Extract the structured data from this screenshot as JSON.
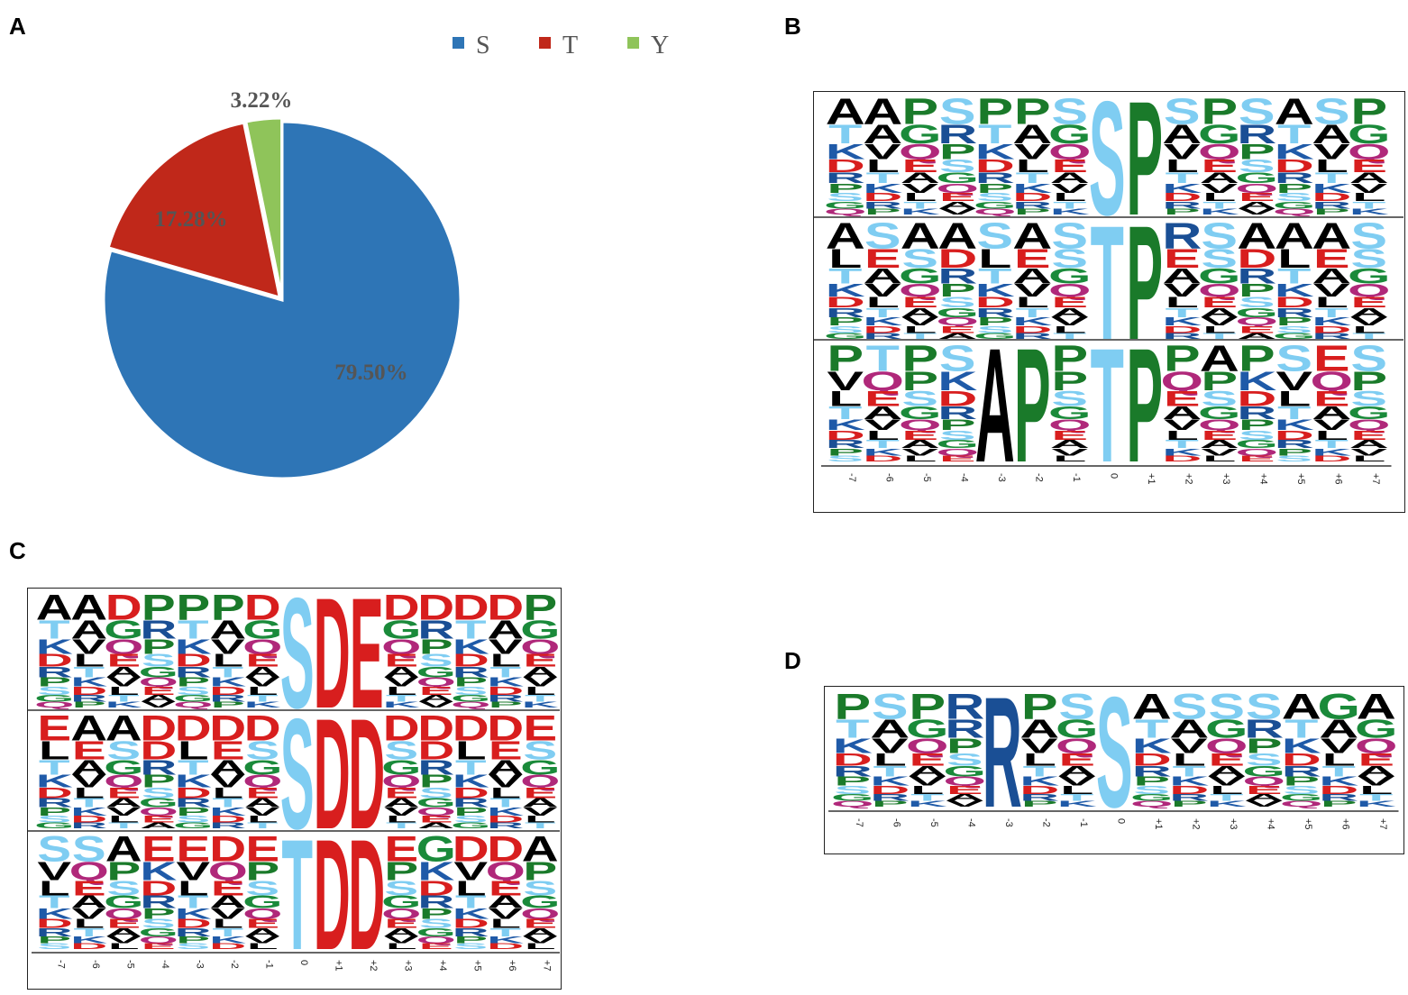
{
  "panels": {
    "a": "A",
    "b": "B",
    "c": "C",
    "d": "D"
  },
  "colors": {
    "S": "#2e75b6",
    "T": "#c0281a",
    "Y": "#8fc45a",
    "logo_P": "#1a7a2a",
    "logo_G": "#1a8a3a",
    "logo_A": "#000000",
    "logo_R": "#1a4f95",
    "logo_K": "#1f5aa8",
    "logo_D": "#d81e1e",
    "logo_E": "#d81e1e",
    "logo_S": "#7fcdf2",
    "logo_T": "#7fcdf2",
    "logo_L": "#000000",
    "logo_V": "#000000",
    "logo_Q": "#b0287a"
  },
  "positions": [
    "-7",
    "-6",
    "-5",
    "-4",
    "-3",
    "-2",
    "-1",
    "0",
    "+1",
    "+2",
    "+3",
    "+4",
    "+5",
    "+6",
    "+7"
  ],
  "chart_data": [
    {
      "type": "pie",
      "legend_position": "top",
      "labels": [
        "S",
        "T",
        "Y"
      ],
      "values": [
        79.5,
        17.28,
        3.22
      ],
      "value_labels": [
        "79.50%",
        "17.28%",
        "3.22%"
      ]
    },
    {
      "type": "sequence-logo",
      "panel": "B",
      "rows": [
        [
          "A",
          "A",
          "P",
          "S",
          "P",
          "P",
          "S",
          "S",
          "P",
          "S",
          "P",
          "S",
          "A",
          "S",
          "P"
        ],
        [
          "A",
          "S",
          "A",
          "A",
          "S",
          "A",
          "S",
          "T",
          "P",
          "R",
          "S",
          "A",
          "A",
          "A",
          "S"
        ],
        [
          "P",
          "T",
          "P",
          "S",
          "A",
          "P",
          "P",
          "T",
          "P",
          "P",
          "A",
          "P",
          "S",
          "E",
          "S"
        ]
      ],
      "dominant": [
        [],
        [],
        [
          7,
          8
        ],
        [
          7,
          8
        ],
        [
          5,
          7,
          8
        ]
      ],
      "dominant_by_row": [
        [
          7,
          8
        ],
        [
          7,
          8
        ],
        [
          4,
          5,
          7,
          8
        ]
      ]
    },
    {
      "type": "sequence-logo",
      "panel": "C",
      "rows": [
        [
          "A",
          "A",
          "D",
          "P",
          "P",
          "P",
          "D",
          "S",
          "D",
          "E",
          "D",
          "D",
          "D",
          "D",
          "P"
        ],
        [
          "E",
          "A",
          "A",
          "D",
          "D",
          "D",
          "D",
          "S",
          "D",
          "D",
          "D",
          "D",
          "D",
          "D",
          "E"
        ],
        [
          "S",
          "S",
          "A",
          "E",
          "E",
          "D",
          "E",
          "T",
          "D",
          "D",
          "E",
          "G",
          "D",
          "D",
          "A"
        ]
      ],
      "dominant_by_row": [
        [
          7,
          8,
          9
        ],
        [
          7,
          8,
          9
        ],
        [
          7,
          8,
          9
        ]
      ]
    },
    {
      "type": "sequence-logo",
      "panel": "D",
      "rows": [
        [
          "P",
          "S",
          "P",
          "R",
          "R",
          "P",
          "S",
          "S",
          "A",
          "S",
          "S",
          "S",
          "A",
          "G",
          "A"
        ]
      ],
      "dominant_by_row": [
        [
          4,
          7
        ]
      ]
    }
  ]
}
